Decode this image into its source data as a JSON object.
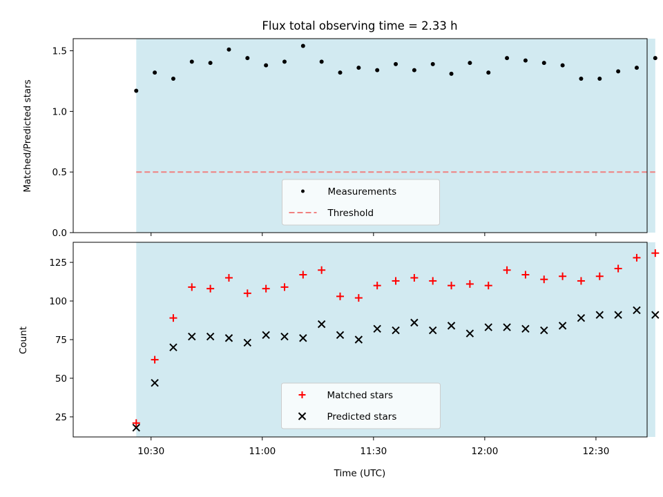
{
  "chart_data": [
    {
      "type": "scatter",
      "title": "Flux total observing time = 2.33 h",
      "xlabel": "",
      "ylabel": "Matched/Predicted stars",
      "ylim": [
        0,
        1.6
      ],
      "yticks": [
        0,
        0.5,
        1.0,
        1.5
      ],
      "ytick_labels": [
        "0.0",
        "0.5",
        "1.0",
        "1.5"
      ],
      "xlim_minutes": [
        10.15,
        12.73
      ],
      "shaded_span": [
        "10:26",
        "12:46"
      ],
      "shade_color": "#add8e6",
      "legend_position": "lower center",
      "x": [
        "10:26",
        "10:31",
        "10:36",
        "10:41",
        "10:46",
        "10:51",
        "10:56",
        "11:01",
        "11:06",
        "11:11",
        "11:16",
        "11:21",
        "11:26",
        "11:31",
        "11:36",
        "11:41",
        "11:46",
        "11:51",
        "11:56",
        "12:01",
        "12:06",
        "12:11",
        "12:16",
        "12:21",
        "12:26",
        "12:31",
        "12:36",
        "12:41",
        "12:46"
      ],
      "series": [
        {
          "name": "Measurements",
          "marker": "dot",
          "color": "#000000",
          "values": [
            1.17,
            1.32,
            1.27,
            1.41,
            1.4,
            1.51,
            1.44,
            1.38,
            1.41,
            1.54,
            1.41,
            1.32,
            1.36,
            1.34,
            1.39,
            1.34,
            1.39,
            1.31,
            1.4,
            1.32,
            1.44,
            1.42,
            1.4,
            1.38,
            1.27,
            1.27,
            1.33,
            1.36,
            1.44
          ]
        },
        {
          "name": "Threshold",
          "marker": "dashed-line",
          "color": "#f08080",
          "values": [
            0.5
          ]
        }
      ]
    },
    {
      "type": "scatter",
      "title": "",
      "xlabel": "Time (UTC)",
      "ylabel": "Count",
      "ylim": [
        12,
        138
      ],
      "yticks": [
        25,
        50,
        75,
        100,
        125
      ],
      "ytick_labels": [
        "25",
        "50",
        "75",
        "100",
        "125"
      ],
      "xticks": [
        "10:30",
        "11:00",
        "11:30",
        "12:00",
        "12:30"
      ],
      "shaded_span": [
        "10:26",
        "12:46"
      ],
      "shade_color": "#add8e6",
      "legend_position": "lower center",
      "x": [
        "10:26",
        "10:31",
        "10:36",
        "10:41",
        "10:46",
        "10:51",
        "10:56",
        "11:01",
        "11:06",
        "11:11",
        "11:16",
        "11:21",
        "11:26",
        "11:31",
        "11:36",
        "11:41",
        "11:46",
        "11:51",
        "11:56",
        "12:01",
        "12:06",
        "12:11",
        "12:16",
        "12:21",
        "12:26",
        "12:31",
        "12:36",
        "12:41",
        "12:46"
      ],
      "series": [
        {
          "name": "Matched stars",
          "marker": "plus",
          "color": "#ff0000",
          "values": [
            21,
            62,
            89,
            109,
            108,
            115,
            105,
            108,
            109,
            117,
            120,
            103,
            102,
            110,
            113,
            115,
            113,
            110,
            111,
            110,
            120,
            117,
            114,
            116,
            113,
            116,
            121,
            128,
            131
          ]
        },
        {
          "name": "Predicted stars",
          "marker": "x",
          "color": "#000000",
          "values": [
            18,
            47,
            70,
            77,
            77,
            76,
            73,
            78,
            77,
            76,
            85,
            78,
            75,
            82,
            81,
            86,
            81,
            84,
            79,
            83,
            83,
            82,
            81,
            84,
            89,
            91,
            91,
            94,
            91
          ]
        }
      ]
    }
  ]
}
